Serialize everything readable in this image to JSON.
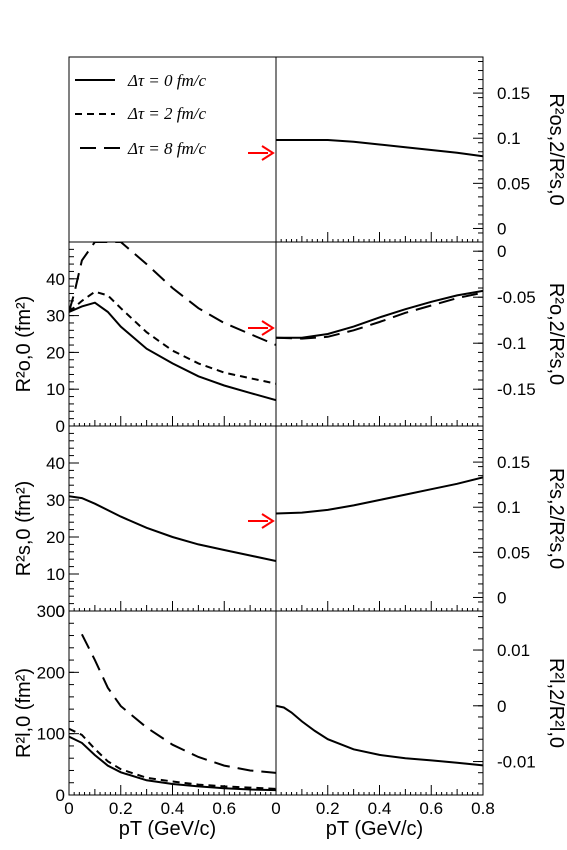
{
  "legend": {
    "entries": [
      {
        "label": "Δτ = 0 fm/c",
        "dash": "solid"
      },
      {
        "label": "Δτ = 2 fm/c",
        "dash": "short-dash"
      },
      {
        "label": "Δτ = 8 fm/c",
        "dash": "long-dash"
      }
    ]
  },
  "arrow_color": "#ff0000",
  "chart_data": [
    {
      "id": "ro0",
      "type": "line",
      "ylabel": "R²o,0 (fm²)",
      "ylim": [
        0,
        50
      ],
      "yticks": [
        0,
        10,
        20,
        30,
        40
      ],
      "xlim": [
        0,
        0.8
      ],
      "series": [
        {
          "name": "Δτ = 0 fm/c",
          "x": [
            0,
            0.05,
            0.1,
            0.15,
            0.2,
            0.3,
            0.4,
            0.5,
            0.6,
            0.7,
            0.8
          ],
          "y": [
            31,
            32.5,
            33.5,
            31,
            27,
            21,
            17,
            13.5,
            11,
            9,
            7
          ]
        },
        {
          "name": "Δτ = 2 fm/c",
          "x": [
            0,
            0.05,
            0.1,
            0.15,
            0.2,
            0.3,
            0.4,
            0.5,
            0.6,
            0.7,
            0.8
          ],
          "y": [
            31,
            34,
            36.5,
            35.5,
            32,
            25.5,
            20.5,
            17,
            14.5,
            13,
            11.5
          ]
        },
        {
          "name": "Δτ = 8 fm/c",
          "x": [
            0,
            0.02,
            0.05,
            0.1,
            0.2,
            0.3,
            0.4,
            0.5,
            0.6,
            0.7,
            0.8
          ],
          "y": [
            31,
            36,
            45,
            50,
            50,
            44,
            37.5,
            32,
            28,
            25,
            22
          ]
        }
      ]
    },
    {
      "id": "rs0",
      "type": "line",
      "ylabel": "R²s,0 (fm²)",
      "ylim": [
        0,
        50
      ],
      "yticks": [
        0,
        10,
        20,
        30,
        40
      ],
      "xlim": [
        0,
        0.8
      ],
      "series": [
        {
          "name": "Δτ = 0 fm/c",
          "x": [
            0,
            0.05,
            0.1,
            0.2,
            0.3,
            0.4,
            0.5,
            0.6,
            0.7,
            0.8
          ],
          "y": [
            31,
            30.5,
            29,
            25.5,
            22.5,
            20,
            18,
            16.5,
            15,
            13.5
          ]
        }
      ]
    },
    {
      "id": "rl0",
      "type": "line",
      "ylabel": "R²l,0 (fm²)",
      "ylim": [
        0,
        300
      ],
      "yticks": [
        0,
        100,
        200,
        300
      ],
      "xlim": [
        0,
        0.8
      ],
      "xticks": [
        0,
        0.2,
        0.4,
        0.6
      ],
      "xlabel": "pT (GeV/c)",
      "series": [
        {
          "name": "Δτ = 0 fm/c",
          "x": [
            0,
            0.05,
            0.1,
            0.15,
            0.2,
            0.3,
            0.4,
            0.5,
            0.6,
            0.7,
            0.8
          ],
          "y": [
            95,
            85,
            65,
            48,
            37,
            24,
            18,
            14,
            11,
            9,
            8
          ]
        },
        {
          "name": "Δτ = 2 fm/c",
          "x": [
            0,
            0.05,
            0.1,
            0.15,
            0.2,
            0.3,
            0.4,
            0.5,
            0.6,
            0.7,
            0.8
          ],
          "y": [
            108,
            98,
            75,
            55,
            42,
            28,
            22,
            17,
            14,
            12,
            10
          ]
        },
        {
          "name": "Δτ = 8 fm/c",
          "x": [
            0.05,
            0.1,
            0.15,
            0.2,
            0.3,
            0.4,
            0.5,
            0.6,
            0.7,
            0.8
          ],
          "y": [
            262,
            220,
            175,
            145,
            110,
            82,
            62,
            48,
            40,
            36
          ]
        }
      ]
    },
    {
      "id": "ros2",
      "type": "line",
      "ylabel": "R²os,2/R²s,0",
      "ylim": [
        -0.015,
        0.19
      ],
      "yticks": [
        0,
        0.05,
        0.1,
        0.15
      ],
      "ytick_labels": [
        "0",
        "0.05",
        "0.1",
        "0.15"
      ],
      "xlim": [
        0,
        0.8
      ],
      "series": [
        {
          "name": "Δτ = 0 fm/c",
          "x": [
            0,
            0.1,
            0.2,
            0.3,
            0.4,
            0.5,
            0.6,
            0.7,
            0.8
          ],
          "y": [
            0.098,
            0.098,
            0.098,
            0.096,
            0.093,
            0.09,
            0.087,
            0.084,
            0.08
          ]
        }
      ]
    },
    {
      "id": "ro2",
      "type": "line",
      "ylabel": "R²o,2/R²s,0",
      "ylim": [
        -0.19,
        0.01
      ],
      "yticks": [
        -0.15,
        -0.1,
        -0.05,
        0
      ],
      "ytick_labels": [
        "-0.15",
        "-0.1",
        "-0.05",
        "0"
      ],
      "xlim": [
        0,
        0.8
      ],
      "series": [
        {
          "name": "Δτ = 0 fm/c",
          "x": [
            0,
            0.1,
            0.2,
            0.3,
            0.4,
            0.5,
            0.6,
            0.7,
            0.8
          ],
          "y": [
            -0.094,
            -0.094,
            -0.09,
            -0.082,
            -0.072,
            -0.063,
            -0.055,
            -0.048,
            -0.043
          ]
        },
        {
          "name": "Δτ = 8 fm/c",
          "x": [
            0,
            0.1,
            0.2,
            0.3,
            0.4,
            0.5,
            0.6,
            0.7,
            0.8
          ],
          "y": [
            -0.094,
            -0.095,
            -0.093,
            -0.086,
            -0.077,
            -0.067,
            -0.059,
            -0.051,
            -0.045
          ]
        }
      ]
    },
    {
      "id": "rs2",
      "type": "line",
      "ylabel": "R²s,2/R²s,0",
      "ylim": [
        -0.015,
        0.19
      ],
      "yticks": [
        0,
        0.05,
        0.1,
        0.15
      ],
      "ytick_labels": [
        "0",
        "0.05",
        "0.1",
        "0.15"
      ],
      "xlim": [
        0,
        0.8
      ],
      "series": [
        {
          "name": "Δτ = 0 fm/c",
          "x": [
            0,
            0.1,
            0.2,
            0.3,
            0.4,
            0.5,
            0.6,
            0.7,
            0.8
          ],
          "y": [
            0.093,
            0.094,
            0.097,
            0.102,
            0.108,
            0.114,
            0.12,
            0.126,
            0.133
          ]
        }
      ]
    },
    {
      "id": "rl2",
      "type": "line",
      "ylabel": "R²l,2/R²l,0",
      "ylim": [
        -0.016,
        0.017
      ],
      "yticks": [
        -0.01,
        0,
        0.01
      ],
      "ytick_labels": [
        "-0.01",
        "0",
        "0.01"
      ],
      "xlim": [
        0,
        0.8
      ],
      "xticks": [
        0,
        0.2,
        0.4,
        0.6,
        0.8
      ],
      "xlabel": "pT (GeV/c)",
      "series": [
        {
          "name": "Δτ = 0 fm/c",
          "x": [
            0,
            0.03,
            0.06,
            0.1,
            0.15,
            0.2,
            0.3,
            0.4,
            0.5,
            0.6,
            0.7,
            0.8
          ],
          "y": [
            0.0,
            -0.0003,
            -0.0012,
            -0.0028,
            -0.0045,
            -0.006,
            -0.0078,
            -0.0088,
            -0.0094,
            -0.0098,
            -0.0102,
            -0.0107
          ]
        }
      ]
    }
  ]
}
